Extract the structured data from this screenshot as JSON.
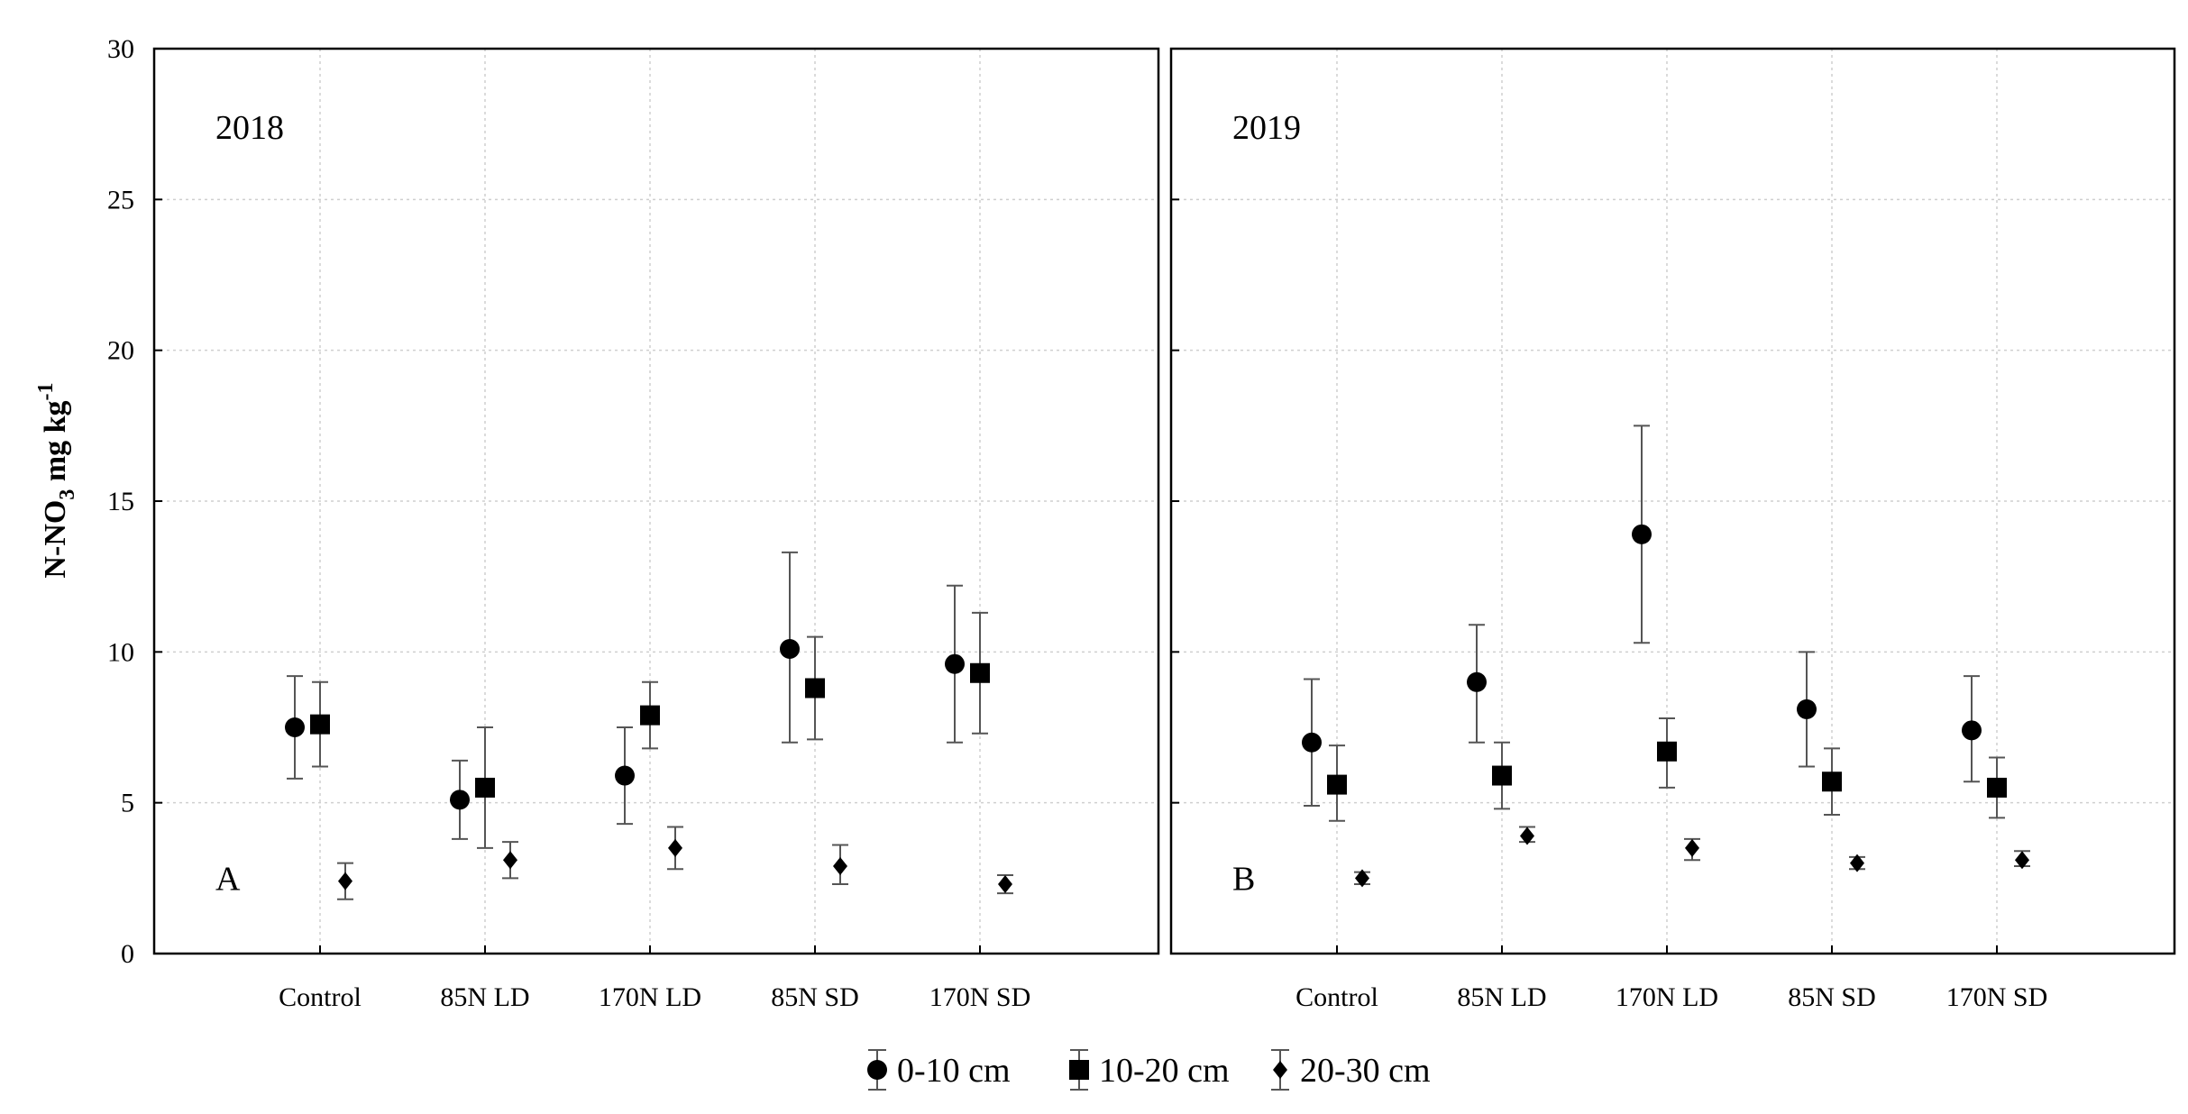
{
  "chart_data": {
    "type": "scatter",
    "ylabel": {
      "main": "N-NO",
      "subscript": "3",
      "unit": " mg kg",
      "superscript": "-1"
    },
    "ylim": [
      0,
      30
    ],
    "yticks": [
      0,
      5,
      10,
      15,
      20,
      25,
      30
    ],
    "grid": true,
    "categories": [
      "Control",
      "85N LD",
      "170N LD",
      "85N SD",
      "170N SD"
    ],
    "legend": {
      "position": "bottom",
      "entries": [
        {
          "label": "0-10 cm",
          "marker": "circle"
        },
        {
          "label": "10-20 cm",
          "marker": "square"
        },
        {
          "label": "20-30 cm",
          "marker": "diamond"
        }
      ]
    },
    "panels": [
      {
        "year": "2018",
        "letter": "A",
        "series": [
          {
            "name": "0-10 cm",
            "values": [
              7.5,
              5.1,
              5.9,
              10.1,
              9.6
            ],
            "lower": [
              5.8,
              3.8,
              4.3,
              7.0,
              7.0
            ],
            "upper": [
              9.2,
              6.4,
              7.5,
              13.3,
              12.2
            ]
          },
          {
            "name": "10-20 cm",
            "values": [
              7.6,
              5.5,
              7.9,
              8.8,
              9.3
            ],
            "lower": [
              6.2,
              3.5,
              6.8,
              7.1,
              7.3
            ],
            "upper": [
              9.0,
              7.5,
              9.0,
              10.5,
              11.3
            ]
          },
          {
            "name": "20-30 cm",
            "values": [
              2.4,
              3.1,
              3.5,
              2.9,
              2.3
            ],
            "lower": [
              1.8,
              2.5,
              2.8,
              2.3,
              2.0
            ],
            "upper": [
              3.0,
              3.7,
              4.2,
              3.6,
              2.6
            ]
          }
        ]
      },
      {
        "year": "2019",
        "letter": "B",
        "series": [
          {
            "name": "0-10 cm",
            "values": [
              7.0,
              9.0,
              13.9,
              8.1,
              7.4
            ],
            "lower": [
              4.9,
              7.0,
              10.3,
              6.2,
              5.7
            ],
            "upper": [
              9.1,
              10.9,
              17.5,
              10.0,
              9.2
            ]
          },
          {
            "name": "10-20 cm",
            "values": [
              5.6,
              5.9,
              6.7,
              5.7,
              5.5
            ],
            "lower": [
              4.4,
              4.8,
              5.5,
              4.6,
              4.5
            ],
            "upper": [
              6.9,
              7.0,
              7.8,
              6.8,
              6.5
            ]
          },
          {
            "name": "20-30 cm",
            "values": [
              2.5,
              3.9,
              3.5,
              3.0,
              3.1
            ],
            "lower": [
              2.3,
              3.7,
              3.1,
              2.8,
              2.9
            ],
            "upper": [
              2.7,
              4.2,
              3.8,
              3.2,
              3.4
            ]
          }
        ]
      }
    ]
  }
}
